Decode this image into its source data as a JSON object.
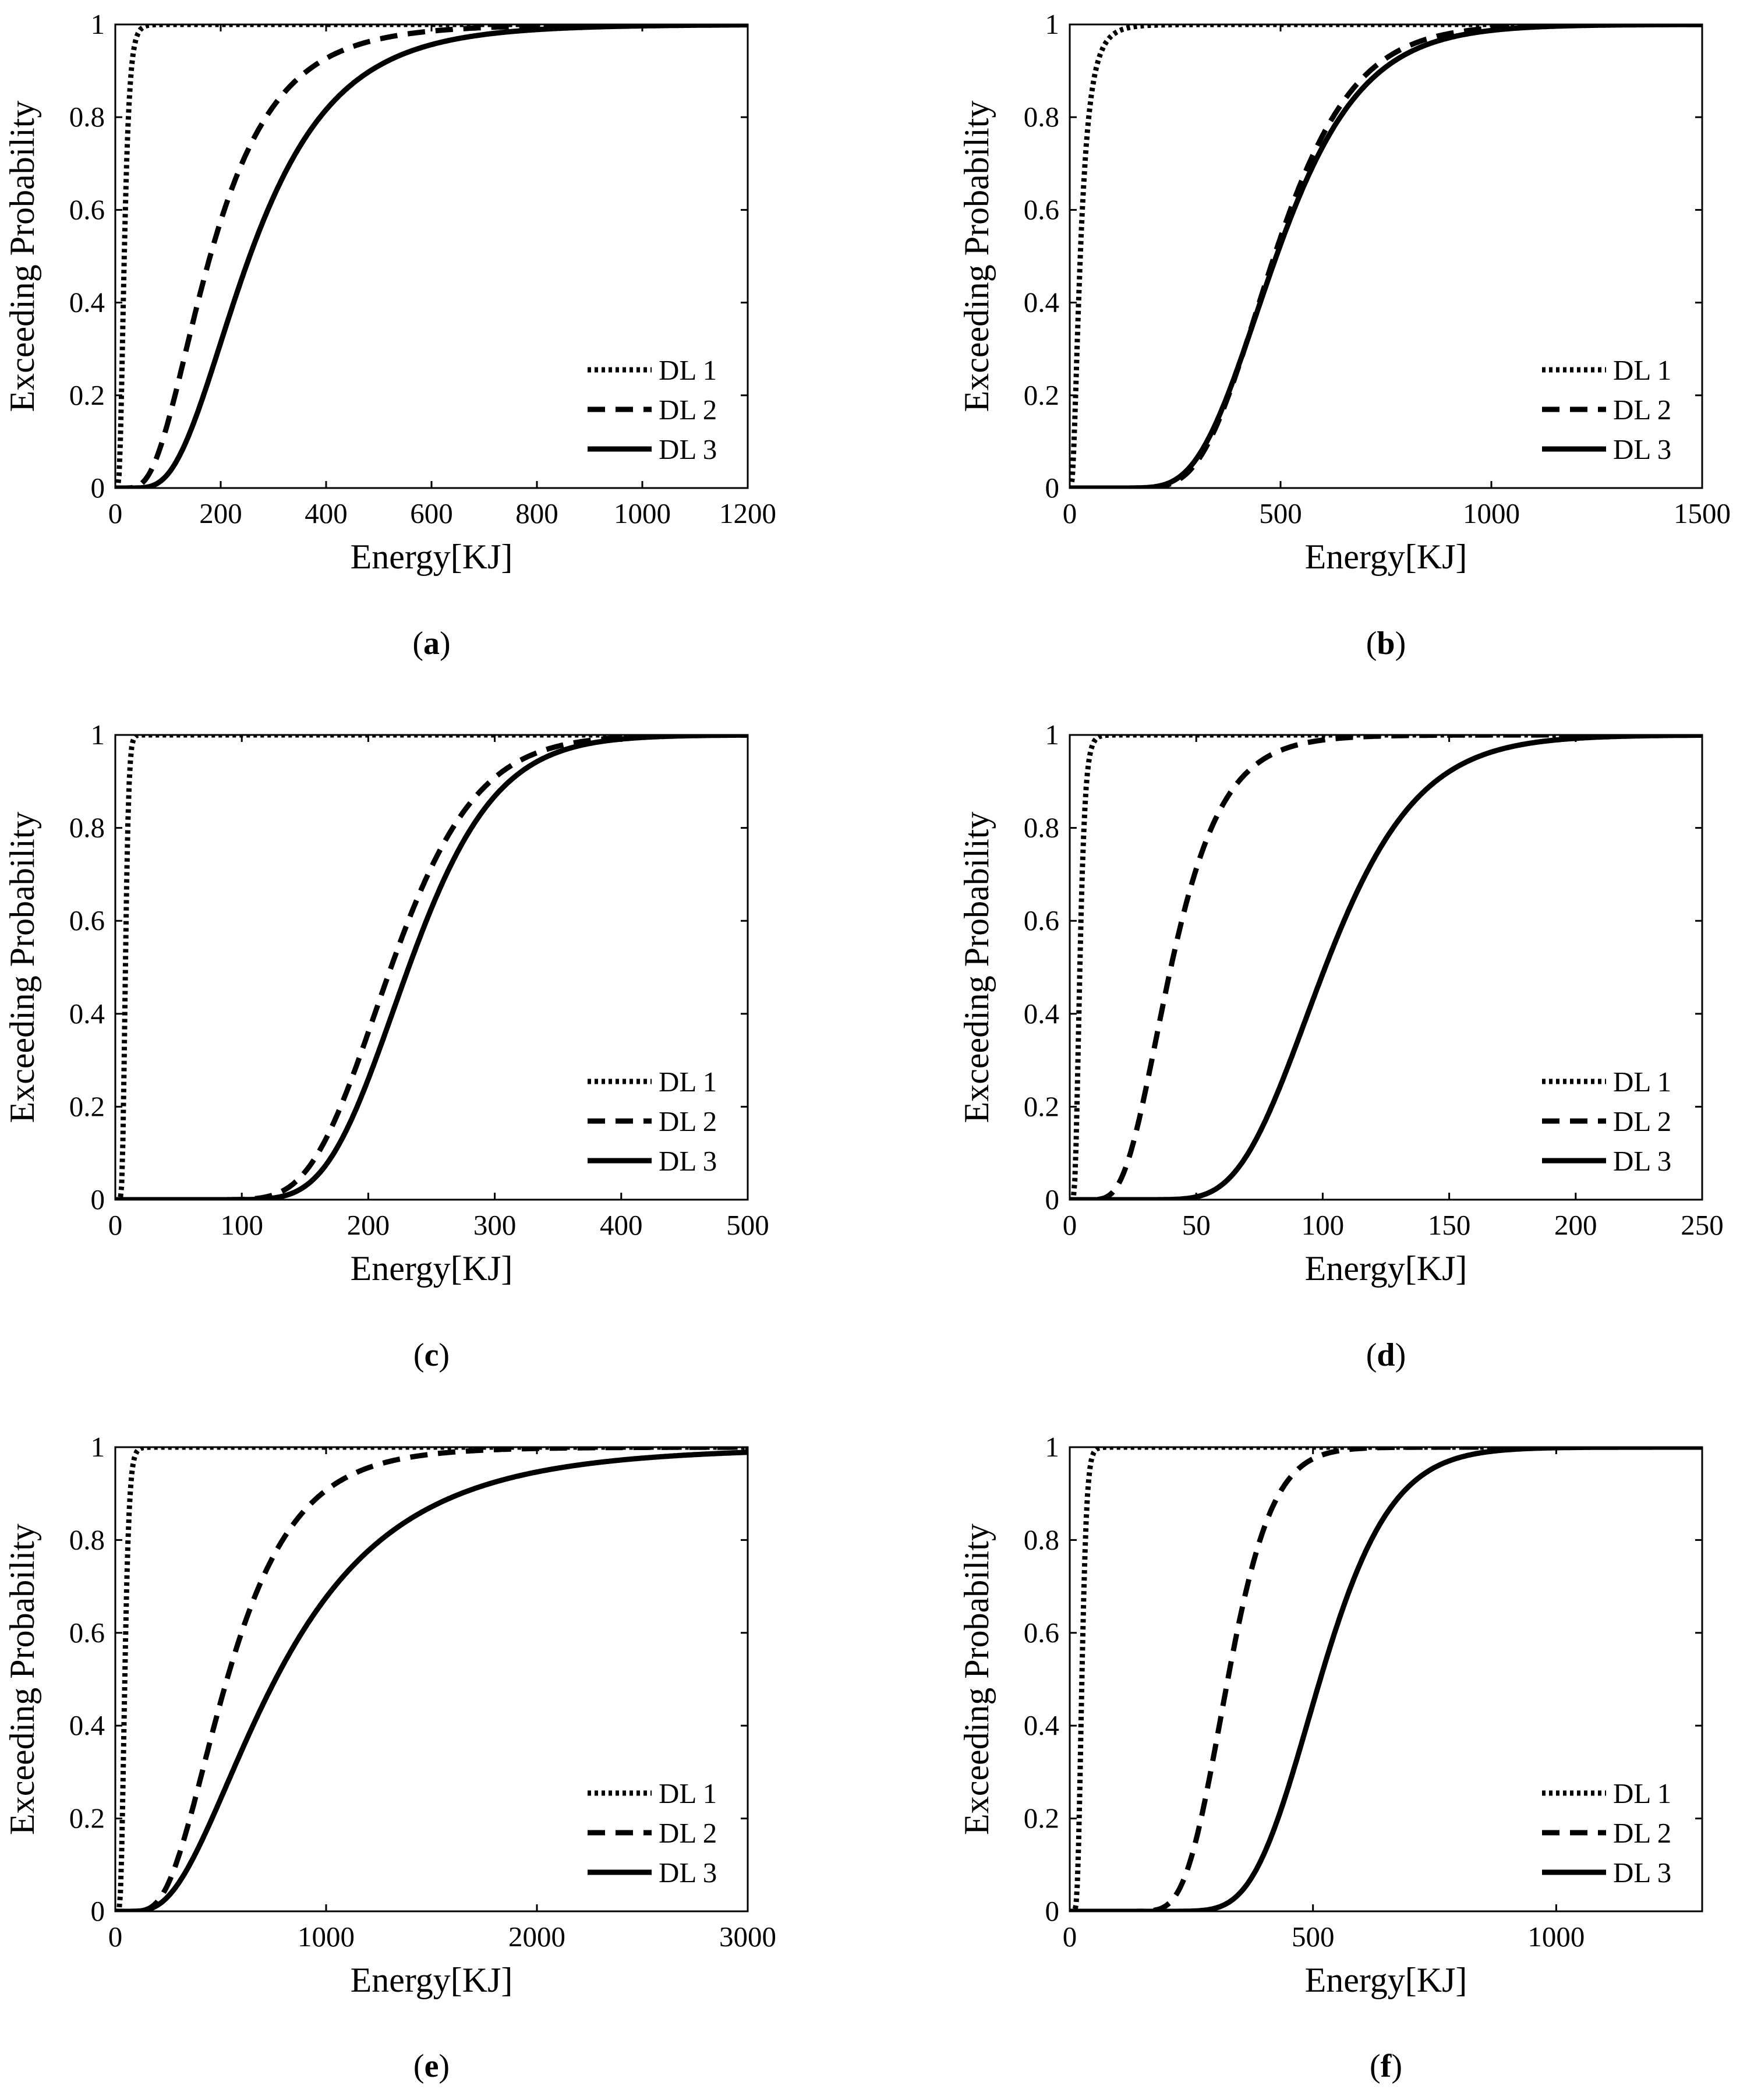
{
  "figure": {
    "description_panels": [
      "a",
      "b",
      "c",
      "d",
      "e",
      "f"
    ]
  },
  "chart_data": [
    {
      "type": "line",
      "panel": "a",
      "panel_label": "a",
      "xlabel": "Energy[KJ]",
      "ylabel": "Exceeding Probability",
      "xlim": [
        0,
        1200
      ],
      "ylim": [
        0,
        1
      ],
      "xticks": [
        0,
        200,
        400,
        600,
        800,
        1000,
        1200
      ],
      "yticks": [
        0,
        0.2,
        0.4,
        0.6,
        0.8,
        1
      ],
      "legend_position": "bottom-right",
      "series": [
        {
          "name": "DL 1",
          "style": "dotted",
          "median": 17,
          "beta": 0.45
        },
        {
          "name": "DL 2",
          "style": "dashed",
          "median": 180,
          "beta": 0.55
        },
        {
          "name": "DL 3",
          "style": "solid",
          "median": 255,
          "beta": 0.5
        }
      ]
    },
    {
      "type": "line",
      "panel": "b",
      "panel_label": "b",
      "xlabel": "Energy[KJ]",
      "ylabel": "Exceeding Probability",
      "xlim": [
        0,
        1500
      ],
      "ylim": [
        0,
        1
      ],
      "xticks": [
        0,
        500,
        1000,
        1500
      ],
      "yticks": [
        0,
        0.2,
        0.4,
        0.6,
        0.8,
        1
      ],
      "legend_position": "bottom-right",
      "series": [
        {
          "name": "DL 1",
          "style": "dotted",
          "median": 25,
          "beta": 0.7
        },
        {
          "name": "DL 2",
          "style": "dashed",
          "median": 485,
          "beta": 0.3
        },
        {
          "name": "DL 3",
          "style": "solid",
          "median": 490,
          "beta": 0.32
        }
      ]
    },
    {
      "type": "line",
      "panel": "c",
      "panel_label": "c",
      "xlabel": "Energy[KJ]",
      "ylabel": "Exceeding Probability",
      "xlim": [
        0,
        500
      ],
      "ylim": [
        0,
        1
      ],
      "xticks": [
        0,
        100,
        200,
        300,
        400,
        500
      ],
      "yticks": [
        0,
        0.2,
        0.4,
        0.6,
        0.8,
        1
      ],
      "legend_position": "bottom-right",
      "series": [
        {
          "name": "DL 1",
          "style": "dotted",
          "median": 8,
          "beta": 0.25
        },
        {
          "name": "DL 2",
          "style": "dashed",
          "median": 218,
          "beta": 0.24
        },
        {
          "name": "DL 3",
          "style": "solid",
          "median": 232,
          "beta": 0.23
        }
      ]
    },
    {
      "type": "line",
      "panel": "d",
      "panel_label": "d",
      "xlabel": "Energy[KJ]",
      "ylabel": "Exceeding Probability",
      "xlim": [
        0,
        250
      ],
      "ylim": [
        0,
        1
      ],
      "xticks": [
        0,
        50,
        100,
        150,
        200,
        250
      ],
      "yticks": [
        0,
        0.2,
        0.4,
        0.6,
        0.8,
        1
      ],
      "legend_position": "bottom-right",
      "series": [
        {
          "name": "DL 1",
          "style": "dotted",
          "median": 4,
          "beta": 0.4
        },
        {
          "name": "DL 2",
          "style": "dashed",
          "median": 40,
          "beta": 0.4
        },
        {
          "name": "DL 3",
          "style": "solid",
          "median": 101,
          "beta": 0.28
        }
      ]
    },
    {
      "type": "line",
      "panel": "e",
      "panel_label": "e",
      "xlabel": "Energy[KJ]",
      "ylabel": "Exceeding Probability",
      "xlim": [
        0,
        3000
      ],
      "ylim": [
        0,
        1
      ],
      "xticks": [
        0,
        1000,
        2000,
        3000
      ],
      "yticks": [
        0,
        0.2,
        0.4,
        0.6,
        0.8,
        1
      ],
      "legend_position": "bottom-right",
      "series": [
        {
          "name": "DL 1",
          "style": "dotted",
          "median": 45,
          "beta": 0.35
        },
        {
          "name": "DL 2",
          "style": "dashed",
          "median": 530,
          "beta": 0.48
        },
        {
          "name": "DL 3",
          "style": "solid",
          "median": 760,
          "beta": 0.6
        }
      ]
    },
    {
      "type": "line",
      "panel": "f",
      "panel_label": "f",
      "xlabel": "Energy[KJ]",
      "ylabel": "Exceeding Probability",
      "xlim": [
        0,
        1300
      ],
      "ylim": [
        0,
        1
      ],
      "xticks": [
        0,
        500,
        1000
      ],
      "yticks": [
        0,
        0.2,
        0.4,
        0.6,
        0.8,
        1
      ],
      "legend_position": "bottom-right",
      "series": [
        {
          "name": "DL 1",
          "style": "dotted",
          "median": 25,
          "beta": 0.3
        },
        {
          "name": "DL 2",
          "style": "dashed",
          "median": 325,
          "beta": 0.22
        },
        {
          "name": "DL 3",
          "style": "solid",
          "median": 515,
          "beta": 0.22
        }
      ]
    }
  ]
}
